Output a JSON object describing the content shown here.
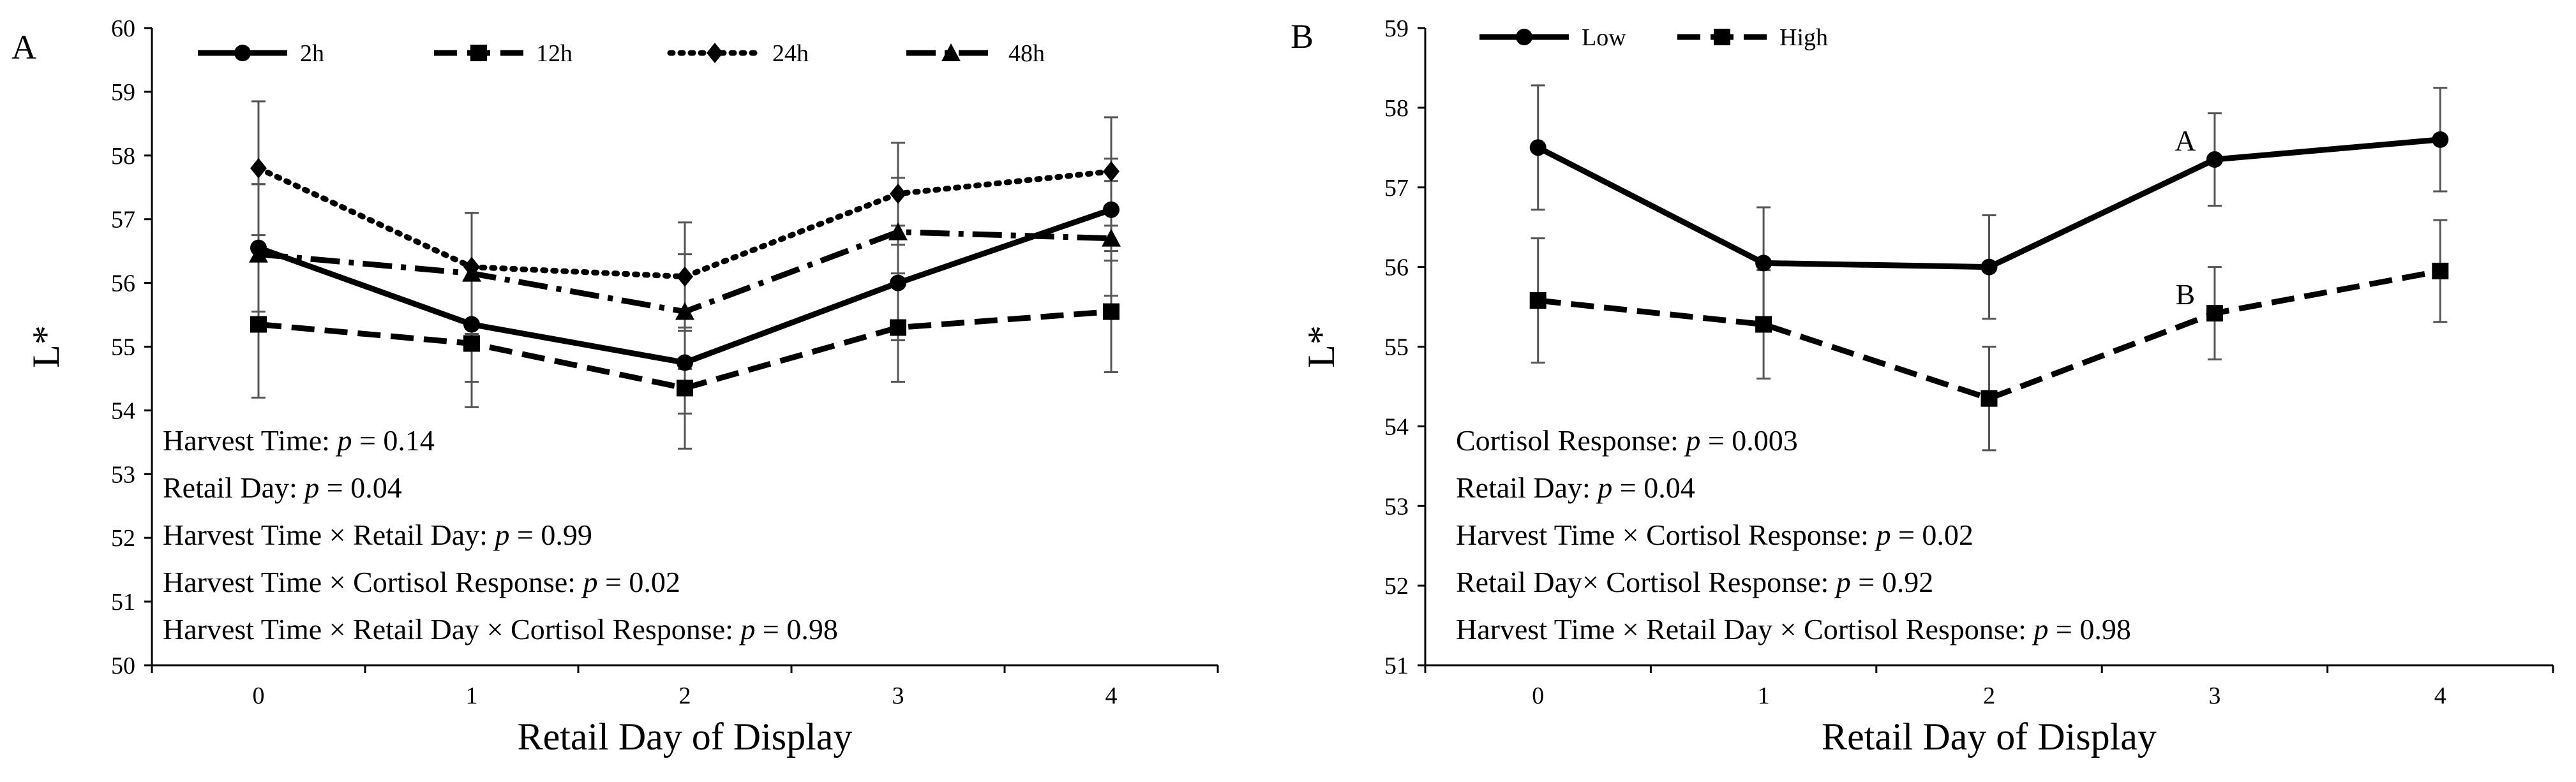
{
  "chart_data": [
    {
      "panel_label": "A",
      "type": "line",
      "xlabel": "Retail Day of Display",
      "ylabel": "L*",
      "ylim": [
        50,
        60
      ],
      "yticks": [
        50,
        51,
        52,
        53,
        54,
        55,
        56,
        57,
        58,
        59,
        60
      ],
      "x": [
        0,
        1,
        2,
        3,
        4
      ],
      "legend_position": "top-left",
      "series": [
        {
          "name": "2h",
          "style": "solid",
          "marker": "circle",
          "values": [
            56.55,
            55.35,
            54.75,
            56.0,
            57.15
          ],
          "error": [
            1.0,
            0.9,
            0.8,
            0.9,
            0.8
          ]
        },
        {
          "name": "12h",
          "style": "long-dash",
          "marker": "square",
          "values": [
            55.35,
            55.05,
            54.35,
            55.3,
            55.55
          ],
          "error": [
            1.15,
            1.0,
            0.95,
            0.85,
            0.95
          ]
        },
        {
          "name": "24h",
          "style": "dotted",
          "marker": "diamond",
          "values": [
            57.8,
            56.25,
            56.1,
            57.4,
            57.75
          ],
          "error": [
            1.05,
            0.85,
            0.85,
            0.8,
            0.85
          ]
        },
        {
          "name": "48h",
          "style": "dash-dot",
          "marker": "triangle",
          "values": [
            56.45,
            56.15,
            55.55,
            56.8,
            56.7
          ],
          "error": [
            1.1,
            0.95,
            0.9,
            0.85,
            0.9
          ]
        }
      ],
      "annotations": [
        {
          "label": "Harvest Time: ",
          "p": "p",
          "value": " = 0.14"
        },
        {
          "label": "Retail Day: ",
          "p": "p",
          "value": " = 0.04"
        },
        {
          "label": "Harvest Time × Retail Day: ",
          "p": "p",
          "value": " = 0.99"
        },
        {
          "label": "Harvest Time × Cortisol Response: ",
          "p": "p",
          "value": " = 0.02"
        },
        {
          "label": "Harvest Time × Retail Day × Cortisol Response: ",
          "p": "p",
          "value": " = 0.98"
        }
      ]
    },
    {
      "panel_label": "B",
      "type": "line",
      "xlabel": "Retail Day of Display",
      "ylabel": "L*",
      "ylim": [
        51,
        59
      ],
      "yticks": [
        51,
        52,
        53,
        54,
        55,
        56,
        57,
        58,
        59
      ],
      "x": [
        0,
        1,
        2,
        3,
        4
      ],
      "legend_position": "top-left",
      "series": [
        {
          "name": "Low",
          "style": "solid",
          "marker": "circle",
          "values": [
            57.5,
            56.05,
            56.0,
            57.35,
            57.6
          ],
          "error": [
            0.78,
            0.7,
            0.65,
            0.58,
            0.65
          ]
        },
        {
          "name": "High",
          "style": "long-dash",
          "marker": "square",
          "values": [
            55.58,
            55.28,
            54.35,
            55.42,
            55.95
          ],
          "error": [
            0.78,
            0.68,
            0.65,
            0.58,
            0.64
          ]
        }
      ],
      "point_labels": [
        {
          "text": "A",
          "series": 0,
          "index": 3
        },
        {
          "text": "B",
          "series": 1,
          "index": 3
        }
      ],
      "annotations": [
        {
          "label": "Cortisol Response: ",
          "p": "p",
          "value": " = 0.003"
        },
        {
          "label": "Retail Day: ",
          "p": "p",
          "value": " = 0.04"
        },
        {
          "label": "Harvest Time × Cortisol Response: ",
          "p": "p",
          "value": " = 0.02"
        },
        {
          "label": "Retail Day× Cortisol Response: ",
          "p": "p",
          "value": " = 0.92"
        },
        {
          "label": "Harvest Time × Retail Day × Cortisol Response: ",
          "p": "p",
          "value": " = 0.98"
        }
      ]
    }
  ]
}
